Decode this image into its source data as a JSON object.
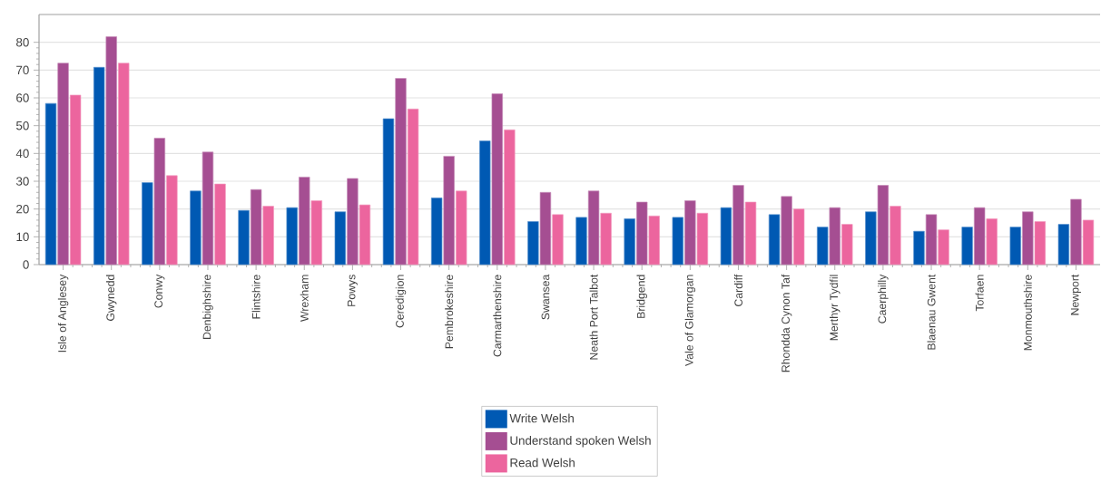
{
  "chart_data": {
    "type": "bar",
    "categories": [
      "Isle of Anglesey",
      "Gwynedd",
      "Conwy",
      "Denbighshire",
      "Flintshire",
      "Wrexham",
      "Powys",
      "Ceredigion",
      "Pembrokeshire",
      "Carmarthenshire",
      "Swansea",
      "Neath Port Talbot",
      "Bridgend",
      "Vale of Glamorgan",
      "Cardiff",
      "Rhondda Cynon Taf",
      "Merthyr Tydfil",
      "Caerphilly",
      "Blaenau Gwent",
      "Torfaen",
      "Monmouthshire",
      "Newport"
    ],
    "series": [
      {
        "name": "Write Welsh",
        "color": "#0059b3",
        "values": [
          58,
          71,
          29.5,
          26.5,
          19.5,
          20.5,
          19,
          52.5,
          24,
          44.5,
          15.5,
          17,
          16.5,
          17,
          20.5,
          18,
          13.5,
          19,
          12,
          13.5,
          13.5,
          14.5
        ]
      },
      {
        "name": "Understand spoken Welsh",
        "color": "#a54e92",
        "values": [
          72.5,
          82,
          45.5,
          40.5,
          27,
          31.5,
          31,
          67,
          39,
          61.5,
          26,
          26.5,
          22.5,
          23,
          28.5,
          24.5,
          20.5,
          28.5,
          18,
          20.5,
          19,
          23.5
        ]
      },
      {
        "name": "Read Welsh",
        "color": "#ec659e",
        "values": [
          61,
          72.5,
          32,
          29,
          21,
          23,
          21.5,
          56,
          26.5,
          48.5,
          18,
          18.5,
          17.5,
          18.5,
          22.5,
          20,
          14.5,
          21,
          12.5,
          16.5,
          15.5,
          16
        ]
      }
    ],
    "ylim": [
      0,
      90
    ],
    "yticks": [
      0,
      10,
      20,
      30,
      40,
      50,
      60,
      70,
      80
    ],
    "grid": "y",
    "legend": "bottom"
  }
}
